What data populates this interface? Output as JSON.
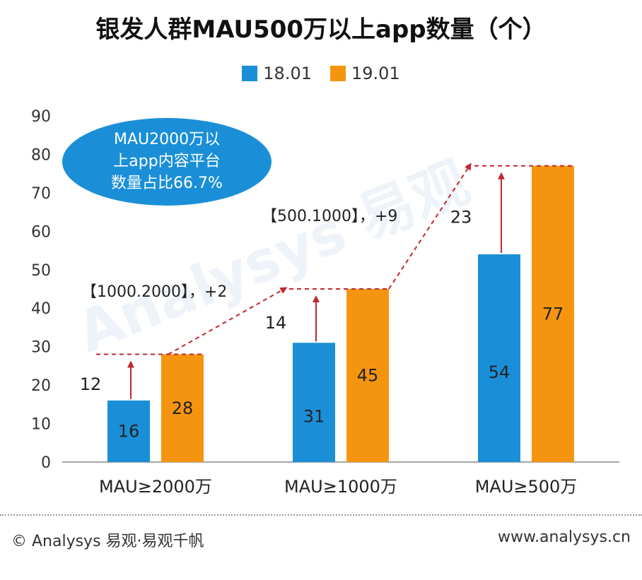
{
  "chart_data": {
    "type": "bar",
    "title": "银发人群MAU500万以上app数量（个）",
    "categories": [
      "MAU≥2000万",
      "MAU≥1000万",
      "MAU≥500万"
    ],
    "series": [
      {
        "name": "18.01",
        "values": [
          16,
          31,
          54
        ],
        "color": "#1a8fd8",
        "label_color": "#222222"
      },
      {
        "name": "19.01",
        "values": [
          28,
          45,
          77
        ],
        "color": "#f5950f",
        "label_color": "#222222"
      }
    ],
    "increments": [
      12,
      14,
      23
    ],
    "ylim": [
      0,
      90
    ],
    "yticks": [
      0,
      10,
      20,
      30,
      40,
      50,
      60,
      70,
      80,
      90
    ],
    "legend_position": "top-center",
    "annotations": [
      {
        "text": "【1000.2000】，+2"
      },
      {
        "text": "【500.1000】，+9"
      }
    ],
    "callout": {
      "lines": [
        "MAU2000万以",
        "上app内容平台",
        "数量占比66.7%"
      ],
      "color": "#1a8fd8"
    }
  },
  "footer": {
    "left": "© Analysys 易观·易观千帆",
    "right": "www.analysys.cn"
  },
  "watermark": "Analysys 易观",
  "colors": {
    "arrow": "#c0282d",
    "axis": "#888888"
  }
}
